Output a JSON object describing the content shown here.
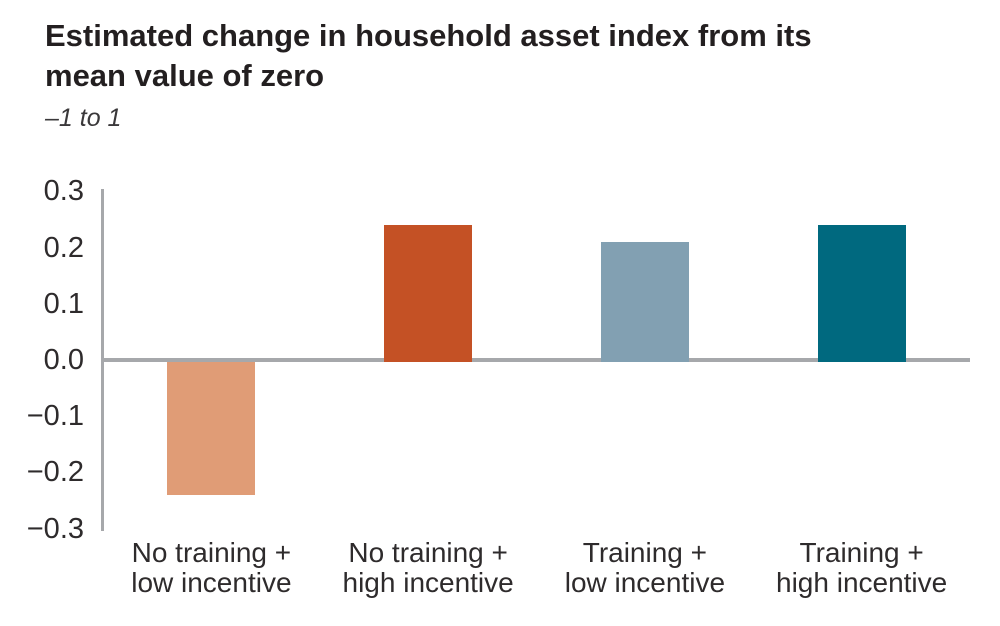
{
  "header": {
    "title_lines": [
      "Estimated change in household asset index from its",
      "mean value of zero"
    ],
    "subtitle": "–1 to 1"
  },
  "chart_data": {
    "type": "bar",
    "title": "Estimated change in household asset index from its mean value of zero",
    "subtitle": "–1 to 1",
    "categories": [
      "No training + low incentive",
      "No training + high incentive",
      "Training + low incentive",
      "Training + high incentive"
    ],
    "category_lines": [
      [
        "No training +",
        "low incentive"
      ],
      [
        "No training +",
        "high incentive"
      ],
      [
        "Training +",
        "low incentive"
      ],
      [
        "Training +",
        "high incentive"
      ]
    ],
    "values": [
      -0.24,
      0.24,
      0.21,
      0.24
    ],
    "bar_colors": [
      "#e09c76",
      "#c45125",
      "#82a0b2",
      "#00697f"
    ],
    "xlabel": "",
    "ylabel": "",
    "ylim": [
      -0.3,
      0.3
    ],
    "yticks": [
      0.3,
      0.2,
      0.1,
      0.0,
      -0.1,
      -0.2,
      -0.3
    ],
    "ytick_labels": [
      "0.3",
      "0.2",
      "0.1",
      "0.0",
      "−0.1",
      "−0.2",
      "−0.3"
    ],
    "grid": false,
    "legend": "none",
    "axis_color": "#a6a8ab",
    "label_color": "#2e2b2c"
  }
}
